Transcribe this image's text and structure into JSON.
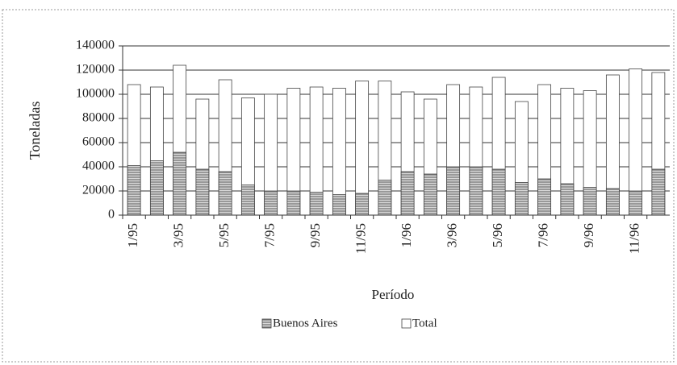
{
  "chart_data": {
    "type": "bar",
    "x_label": "Período",
    "y_label": "Toneladas",
    "categories": [
      "1/95",
      null,
      "3/95",
      null,
      "5/95",
      null,
      "7/95",
      null,
      "9/95",
      null,
      "11/95",
      null,
      "1/96",
      null,
      "3/96",
      null,
      "5/96",
      null,
      "7/96",
      null,
      "9/96",
      null,
      "11/96",
      null
    ],
    "series": [
      {
        "name": "Total",
        "color": "#ffffff",
        "values": [
          108000,
          106000,
          124000,
          96000,
          112000,
          97000,
          100000,
          105000,
          106000,
          105000,
          111000,
          111000,
          102000,
          96000,
          108000,
          106000,
          114000,
          94000,
          108000,
          105000,
          103000,
          116000,
          121000,
          118000
        ]
      },
      {
        "name": "Buenos Aires",
        "color": "#777777",
        "values": [
          41000,
          45000,
          52000,
          38000,
          36000,
          25000,
          20000,
          20000,
          19000,
          17000,
          18000,
          29000,
          36000,
          34000,
          40000,
          40000,
          38000,
          27000,
          30000,
          26000,
          23000,
          22000,
          20000,
          38000
        ]
      }
    ],
    "ylim": [
      0,
      140000
    ],
    "yticks": [
      0,
      20000,
      40000,
      60000,
      80000,
      100000,
      120000,
      140000
    ],
    "grid": true,
    "overlap": true,
    "legend": "bottom"
  }
}
